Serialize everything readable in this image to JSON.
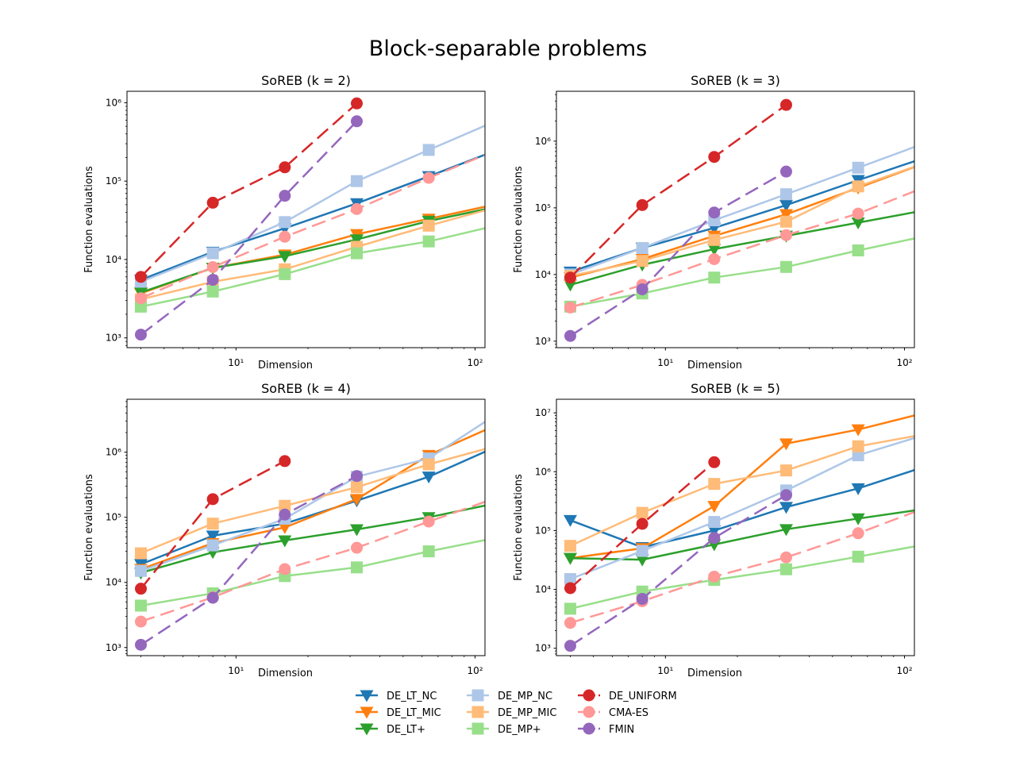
{
  "figure": {
    "suptitle": "Block-separable problems"
  },
  "chart_data": [
    {
      "type": "line",
      "title": "SoREB (k = 2)",
      "xlabel": "Dimension",
      "ylabel": "Function evaluations",
      "xscale": "log",
      "yscale": "log",
      "xlim": [
        3.5,
        110
      ],
      "ylim": [
        750,
        1400000
      ],
      "grid": false,
      "series": [
        {
          "name": "DE_LT_NC",
          "x": [
            4,
            8,
            16,
            32,
            64,
            128
          ],
          "y": [
            5500,
            12500,
            25000,
            52000,
            115000,
            260000
          ]
        },
        {
          "name": "DE_LT_MIC",
          "x": [
            4,
            8,
            16,
            32,
            64,
            128
          ],
          "y": [
            3700,
            7800,
            11500,
            21000,
            33000,
            52000
          ]
        },
        {
          "name": "DE_LT+",
          "x": [
            4,
            8,
            16,
            32,
            64,
            128
          ],
          "y": [
            3800,
            7800,
            11000,
            18000,
            31000,
            48000
          ]
        },
        {
          "name": "DE_MP_NC",
          "x": [
            4,
            8,
            16,
            32,
            64,
            128
          ],
          "y": [
            5200,
            12000,
            30000,
            100000,
            250000,
            620000
          ]
        },
        {
          "name": "DE_MP_MIC",
          "x": [
            4,
            8,
            16,
            32,
            64,
            128
          ],
          "y": [
            3100,
            5200,
            7500,
            14500,
            27000,
            48000
          ]
        },
        {
          "name": "DE_MP+",
          "x": [
            4,
            8,
            16,
            32,
            64,
            128
          ],
          "y": [
            2500,
            3900,
            6500,
            12000,
            17000,
            28000
          ]
        },
        {
          "name": "DE_UNIFORM",
          "x": [
            4,
            8,
            16,
            32
          ],
          "y": [
            6000,
            53000,
            150000,
            980000
          ]
        },
        {
          "name": "CMA-ES",
          "x": [
            4,
            8,
            16,
            32,
            64,
            128
          ],
          "y": [
            3200,
            8000,
            19500,
            44000,
            110000,
            260000
          ]
        },
        {
          "name": "FMIN",
          "x": [
            4,
            8,
            16,
            32
          ],
          "y": [
            1100,
            5500,
            65000,
            580000
          ]
        }
      ]
    },
    {
      "type": "line",
      "title": "SoREB (k = 3)",
      "xlabel": "Dimension",
      "ylabel": "Function evaluations",
      "xscale": "log",
      "yscale": "log",
      "xlim": [
        3.5,
        110
      ],
      "ylim": [
        800,
        5600000
      ],
      "grid": false,
      "series": [
        {
          "name": "DE_LT_NC",
          "x": [
            4,
            8,
            16,
            32,
            64,
            128
          ],
          "y": [
            11000,
            25000,
            50000,
            110000,
            260000,
            600000
          ]
        },
        {
          "name": "DE_LT_MIC",
          "x": [
            4,
            8,
            16,
            32,
            64,
            128
          ],
          "y": [
            9000,
            17000,
            38000,
            80000,
            200000,
            500000
          ]
        },
        {
          "name": "DE_LT+",
          "x": [
            4,
            8,
            16,
            32,
            64,
            128
          ],
          "y": [
            7000,
            14000,
            24000,
            38000,
            60000,
            95000
          ]
        },
        {
          "name": "DE_MP_NC",
          "x": [
            4,
            8,
            16,
            32,
            64,
            128
          ],
          "y": [
            10000,
            25000,
            65000,
            160000,
            400000,
            1000000
          ]
        },
        {
          "name": "DE_MP_MIC",
          "x": [
            4,
            8,
            16,
            32,
            64,
            128
          ],
          "y": [
            9500,
            16000,
            33000,
            62000,
            210000,
            500000
          ]
        },
        {
          "name": "DE_MP+",
          "x": [
            4,
            8,
            16,
            32,
            64,
            128
          ],
          "y": [
            3300,
            5200,
            9000,
            13000,
            23000,
            39000
          ]
        },
        {
          "name": "DE_UNIFORM",
          "x": [
            4,
            8,
            16,
            32
          ],
          "y": [
            9000,
            110000,
            580000,
            3500000
          ]
        },
        {
          "name": "CMA-ES",
          "x": [
            4,
            8,
            16,
            32,
            64,
            128
          ],
          "y": [
            3200,
            7000,
            17000,
            39000,
            82000,
            220000
          ]
        },
        {
          "name": "FMIN",
          "x": [
            4,
            8,
            16,
            32
          ],
          "y": [
            1200,
            6000,
            85000,
            350000
          ]
        }
      ]
    },
    {
      "type": "line",
      "title": "SoREB (k = 4)",
      "xlabel": "Dimension",
      "ylabel": "Function evaluations",
      "xscale": "log",
      "yscale": "log",
      "xlim": [
        3.5,
        110
      ],
      "ylim": [
        750,
        6500000
      ],
      "grid": false,
      "series": [
        {
          "name": "DE_LT_NC",
          "x": [
            4,
            8,
            16,
            32,
            64,
            128
          ],
          "y": [
            19000,
            52000,
            80000,
            180000,
            420000,
            1300000
          ]
        },
        {
          "name": "DE_LT_MIC",
          "x": [
            4,
            8,
            16,
            32,
            64,
            128
          ],
          "y": [
            16000,
            40000,
            70000,
            190000,
            900000,
            2800000
          ]
        },
        {
          "name": "DE_LT+",
          "x": [
            4,
            8,
            16,
            32,
            64,
            128
          ],
          "y": [
            14000,
            29000,
            44000,
            65000,
            100000,
            170000
          ]
        },
        {
          "name": "DE_MP_NC",
          "x": [
            4,
            8,
            16,
            32,
            64,
            128
          ],
          "y": [
            15000,
            37000,
            95000,
            420000,
            800000,
            4200000
          ]
        },
        {
          "name": "DE_MP_MIC",
          "x": [
            4,
            8,
            16,
            32,
            64,
            128
          ],
          "y": [
            28000,
            80000,
            150000,
            290000,
            650000,
            1300000
          ]
        },
        {
          "name": "DE_MP+",
          "x": [
            4,
            8,
            16,
            32,
            64,
            128
          ],
          "y": [
            4400,
            6800,
            12500,
            17000,
            30000,
            50000
          ]
        },
        {
          "name": "DE_UNIFORM",
          "x": [
            4,
            8,
            16
          ],
          "y": [
            8000,
            190000,
            730000
          ]
        },
        {
          "name": "CMA-ES",
          "x": [
            4,
            8,
            16,
            32,
            64,
            128
          ],
          "y": [
            2500,
            5900,
            16000,
            34000,
            86000,
            210000
          ]
        },
        {
          "name": "FMIN",
          "x": [
            4,
            8,
            16,
            32
          ],
          "y": [
            1100,
            5800,
            110000,
            430000
          ]
        }
      ]
    },
    {
      "type": "line",
      "title": "SoREB (k = 5)",
      "xlabel": "Dimension",
      "ylabel": "Function evaluations",
      "xscale": "log",
      "yscale": "log",
      "xlim": [
        3.5,
        110
      ],
      "ylim": [
        750,
        17000000
      ],
      "grid": false,
      "series": [
        {
          "name": "DE_LT_NC",
          "x": [
            4,
            8,
            16,
            32,
            64,
            128
          ],
          "y": [
            150000,
            52000,
            100000,
            250000,
            520000,
            1300000
          ]
        },
        {
          "name": "DE_LT_MIC",
          "x": [
            4,
            8,
            16,
            32,
            64,
            128
          ],
          "y": [
            34000,
            50000,
            260000,
            3000000,
            5200000,
            10500000
          ]
        },
        {
          "name": "DE_LT+",
          "x": [
            4,
            8,
            16,
            32,
            64,
            128
          ],
          "y": [
            34000,
            32000,
            58000,
            105000,
            160000,
            240000
          ]
        },
        {
          "name": "DE_MP_NC",
          "x": [
            4,
            8,
            16,
            32,
            64,
            128
          ],
          "y": [
            15000,
            45000,
            140000,
            480000,
            1900000,
            4500000
          ]
        },
        {
          "name": "DE_MP_MIC",
          "x": [
            4,
            8,
            16,
            32,
            64,
            128
          ],
          "y": [
            55000,
            200000,
            620000,
            1050000,
            2700000,
            4500000
          ]
        },
        {
          "name": "DE_MP+",
          "x": [
            4,
            8,
            16,
            32,
            64,
            128
          ],
          "y": [
            4700,
            9200,
            14500,
            22000,
            36000,
            60000
          ]
        },
        {
          "name": "DE_UNIFORM",
          "x": [
            4,
            8,
            16
          ],
          "y": [
            10500,
            130000,
            1450000
          ]
        },
        {
          "name": "CMA-ES",
          "x": [
            4,
            8,
            16,
            32,
            64,
            128
          ],
          "y": [
            2700,
            6300,
            16500,
            35000,
            90000,
            260000
          ]
        },
        {
          "name": "FMIN",
          "x": [
            4,
            8,
            16,
            32
          ],
          "y": [
            1100,
            6900,
            75000,
            400000
          ]
        }
      ]
    }
  ],
  "series_styles": [
    {
      "name": "DE_LT_NC",
      "color": "#1f77b4",
      "marker": "triangle-down",
      "dash": "solid"
    },
    {
      "name": "DE_LT_MIC",
      "color": "#ff7f0e",
      "marker": "triangle-down",
      "dash": "solid"
    },
    {
      "name": "DE_LT+",
      "color": "#2ca02c",
      "marker": "triangle-down",
      "dash": "solid"
    },
    {
      "name": "DE_MP_NC",
      "color": "#aec7e8",
      "marker": "square",
      "dash": "solid"
    },
    {
      "name": "DE_MP_MIC",
      "color": "#ffbb78",
      "marker": "square",
      "dash": "solid"
    },
    {
      "name": "DE_MP+",
      "color": "#98df8a",
      "marker": "square",
      "dash": "solid"
    },
    {
      "name": "DE_UNIFORM",
      "color": "#d62728",
      "marker": "circle",
      "dash": "dashed"
    },
    {
      "name": "CMA-ES",
      "color": "#ff9896",
      "marker": "circle",
      "dash": "dashed"
    },
    {
      "name": "FMIN",
      "color": "#9467bd",
      "marker": "circle",
      "dash": "dashed"
    }
  ],
  "legend": {
    "placement": "bottom-center",
    "entries": [
      "DE_LT_NC",
      "DE_LT_MIC",
      "DE_LT+",
      "DE_MP_NC",
      "DE_MP_MIC",
      "DE_MP+",
      "DE_UNIFORM",
      "CMA-ES",
      "FMIN"
    ]
  }
}
